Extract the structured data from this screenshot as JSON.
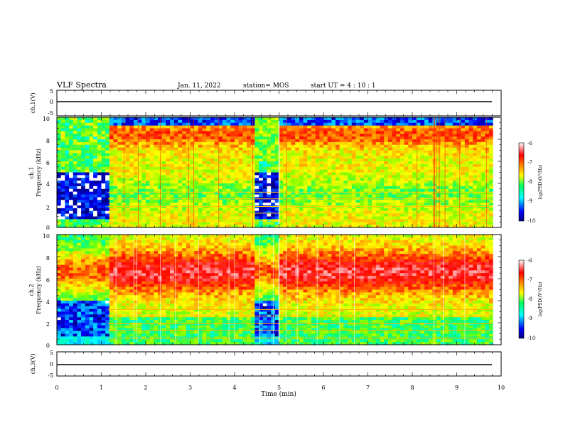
{
  "header": {
    "title": "VLF Spectra",
    "date": "Jan. 11, 2022",
    "station": "station= MOS",
    "start": "start  UT =   4 : 10 : 1"
  },
  "colors": {
    "background": "#ffffff",
    "axis": "#000000",
    "colormap": [
      "#00007f",
      "#0000ff",
      "#00bfff",
      "#00ffff",
      "#00ff80",
      "#80ff00",
      "#ffff00",
      "#ffb000",
      "#ff4000",
      "#ff0000",
      "#ff8080",
      "#ffffff"
    ]
  },
  "chart_data": [
    {
      "type": "line",
      "panel": "ch1-waveform",
      "ylabel": "ch.1(V)",
      "ylim": [
        -5,
        5
      ],
      "yticks": [
        "5",
        "0",
        "-5"
      ],
      "xlim": [
        0,
        10
      ],
      "series": [
        {
          "x": [
            0,
            9.8
          ],
          "values": [
            0,
            0
          ]
        }
      ]
    },
    {
      "type": "heatmap",
      "panel": "ch1-spectrogram",
      "ylabel": "ch.1\nFrequency (kHz)",
      "ylim": [
        0,
        10
      ],
      "yticks": [
        "0",
        "2",
        "4",
        "6",
        "8",
        "10"
      ],
      "xlim": [
        0,
        10
      ],
      "colorbar": {
        "label": "log(PSD)(V²/Hz)",
        "ticks": [
          "-6",
          "-7",
          "-8",
          "-9",
          "-10"
        ],
        "range": [
          -10,
          -6
        ]
      }
    },
    {
      "type": "heatmap",
      "panel": "ch2-spectrogram",
      "ylabel": "ch.2\nFrequency (kHz)",
      "ylim": [
        0,
        10
      ],
      "yticks": [
        "0",
        "2",
        "4",
        "6",
        "8",
        "10"
      ],
      "xlim": [
        0,
        10
      ],
      "colorbar": {
        "label": "log(PSD)(V²/Hz)",
        "ticks": [
          "-6",
          "-7",
          "-8",
          "-9",
          "-10"
        ],
        "range": [
          -10,
          -6
        ]
      }
    },
    {
      "type": "line",
      "panel": "ch3-waveform",
      "ylabel": "ch.3(V)",
      "ylim": [
        -5,
        5
      ],
      "yticks": [
        "5",
        "0",
        "-5"
      ],
      "xlim": [
        0,
        10
      ],
      "xticks": [
        "0",
        "1",
        "2",
        "3",
        "4",
        "5",
        "6",
        "7",
        "8",
        "9",
        "10"
      ],
      "xlabel": "Time (min)",
      "series": [
        {
          "x": [
            0,
            9.8
          ],
          "values": [
            0,
            0
          ]
        }
      ]
    }
  ]
}
